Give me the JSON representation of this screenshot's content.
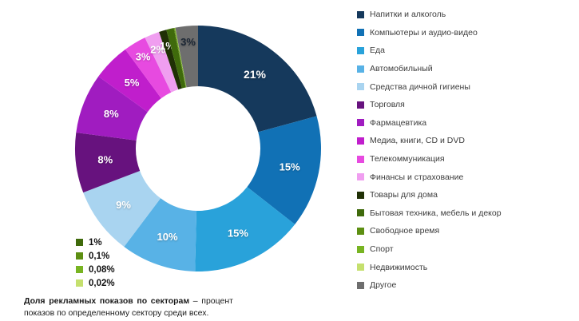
{
  "caption": {
    "bold": "Доля рекламных показов по секторам",
    "rest": " – процент показов по определенному сектору среди всех."
  },
  "chart_data": {
    "type": "pie",
    "donut": true,
    "hole_ratio": 0.5,
    "legend_position": "right",
    "title": "Доля рекламных показов по секторам",
    "series": [
      {
        "name": "Напитки и алкоголь",
        "value": 21,
        "label": "21%",
        "color": "#15395c"
      },
      {
        "name": "Компьютеры и аудио-видео",
        "value": 15,
        "label": "15%",
        "color": "#1171b5"
      },
      {
        "name": "Еда",
        "value": 15,
        "label": "15%",
        "color": "#29a2da"
      },
      {
        "name": "Автомобильный",
        "value": 10,
        "label": "10%",
        "color": "#58b2e6"
      },
      {
        "name": "Средства дичной гигиены",
        "value": 9,
        "label": "9%",
        "color": "#a9d4f0"
      },
      {
        "name": "Торговля",
        "value": 8,
        "label": "8%",
        "color": "#67127e"
      },
      {
        "name": "Фармацевтика",
        "value": 8,
        "label": "8%",
        "color": "#a01cc0"
      },
      {
        "name": "Медиа, книги, CD и DVD",
        "value": 5,
        "label": "5%",
        "color": "#c01ecc"
      },
      {
        "name": "Телекоммуникация",
        "value": 3,
        "label": "3%",
        "color": "#e74ae0"
      },
      {
        "name": "Финансы и страхование",
        "value": 2,
        "label": "2%",
        "color": "#f09ef0"
      },
      {
        "name": "Товары для дома",
        "value": 1,
        "label": "1%",
        "color": "#203005"
      },
      {
        "name": "Бытовая техника, мебель и декор",
        "value": 1,
        "label": "",
        "color": "#3f6a0b"
      },
      {
        "name": "Свободное время",
        "value": 0.1,
        "label": "",
        "color": "#5d8f12"
      },
      {
        "name": "Спорт",
        "value": 0.08,
        "label": "",
        "color": "#78b422"
      },
      {
        "name": "Недвижимость",
        "value": 0.02,
        "label": "",
        "color": "#c5e06e"
      },
      {
        "name": "Другое",
        "value": 3,
        "label": "3%",
        "color": "#6e6e6e",
        "label_color": "#1b2634"
      }
    ],
    "mini_legend": [
      {
        "label": "1%",
        "color": "#3f6a0b"
      },
      {
        "label": "0,1%",
        "color": "#5d8f12"
      },
      {
        "label": "0,08%",
        "color": "#78b422"
      },
      {
        "label": "0,02%",
        "color": "#c5e06e"
      }
    ]
  }
}
